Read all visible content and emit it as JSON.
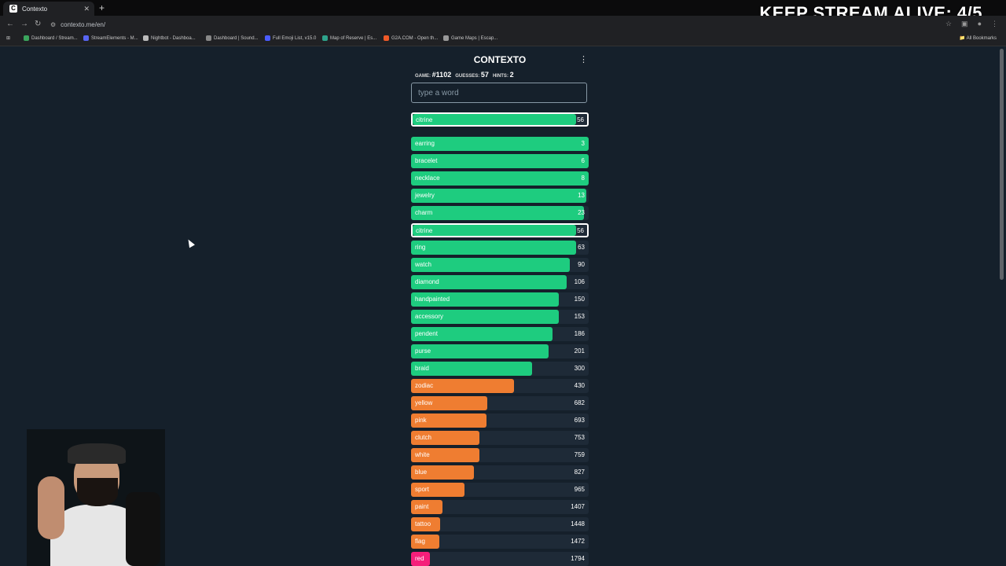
{
  "browser": {
    "tab_title": "Contexto",
    "tab_favicon_letter": "C",
    "url": "contexto.me/en/",
    "bookmarks": [
      {
        "label": "Dashboard / Stream...",
        "color": "#3ba55d"
      },
      {
        "label": "StreamElements - M...",
        "color": "#5865f2"
      },
      {
        "label": "Nightbot - Dashboa...",
        "color": "#bbbbbb"
      },
      {
        "label": "Dashboard | Sound...",
        "color": "#888888"
      },
      {
        "label": "Full Emoji List, v15.0",
        "color": "#4a5cff"
      },
      {
        "label": "Map of Reserve | Es...",
        "color": "#2ea38b"
      },
      {
        "label": "G2A.COM - Open th...",
        "color": "#f05a28"
      },
      {
        "label": "Game Maps | Escap...",
        "color": "#999999"
      }
    ],
    "all_bookmarks_label": "All Bookmarks"
  },
  "overlay": {
    "text": "KEEP STREAM ALIVE: 4/5"
  },
  "game": {
    "title": "CONTEXTO",
    "game_label": "GAME:",
    "game_number": "#1102",
    "guesses_label": "GUESSES:",
    "guesses": "57",
    "hints_label": "HINTS:",
    "hints": "2",
    "search_placeholder": "type a word",
    "last_guess": {
      "word": "citrine",
      "distance": "56",
      "fill": 0.935,
      "color": "#1ecc7f"
    },
    "guesses_list": [
      {
        "word": "earring",
        "distance": "3",
        "fill": 1.0,
        "color": "#1ecc7f"
      },
      {
        "word": "bracelet",
        "distance": "6",
        "fill": 1.0,
        "color": "#1ecc7f"
      },
      {
        "word": "necklace",
        "distance": "8",
        "fill": 1.0,
        "color": "#1ecc7f"
      },
      {
        "word": "jewelry",
        "distance": "13",
        "fill": 0.985,
        "color": "#1ecc7f"
      },
      {
        "word": "charm",
        "distance": "23",
        "fill": 0.975,
        "color": "#1ecc7f"
      },
      {
        "word": "citrine",
        "distance": "56",
        "fill": 0.935,
        "color": "#1ecc7f",
        "highlight": true
      },
      {
        "word": "ring",
        "distance": "63",
        "fill": 0.93,
        "color": "#1ecc7f"
      },
      {
        "word": "watch",
        "distance": "90",
        "fill": 0.895,
        "color": "#1ecc7f"
      },
      {
        "word": "diamond",
        "distance": "106",
        "fill": 0.875,
        "color": "#1ecc7f"
      },
      {
        "word": "handpainted",
        "distance": "150",
        "fill": 0.83,
        "color": "#1ecc7f"
      },
      {
        "word": "accessory",
        "distance": "153",
        "fill": 0.83,
        "color": "#1ecc7f"
      },
      {
        "word": "pendent",
        "distance": "186",
        "fill": 0.795,
        "color": "#1ecc7f"
      },
      {
        "word": "purse",
        "distance": "201",
        "fill": 0.775,
        "color": "#1ecc7f"
      },
      {
        "word": "braid",
        "distance": "300",
        "fill": 0.68,
        "color": "#1ecc7f"
      },
      {
        "word": "zodiac",
        "distance": "430",
        "fill": 0.58,
        "color": "#ef7d31"
      },
      {
        "word": "yellow",
        "distance": "682",
        "fill": 0.43,
        "color": "#ef7d31"
      },
      {
        "word": "pink",
        "distance": "693",
        "fill": 0.425,
        "color": "#ef7d31"
      },
      {
        "word": "clutch",
        "distance": "753",
        "fill": 0.385,
        "color": "#ef7d31"
      },
      {
        "word": "white",
        "distance": "759",
        "fill": 0.385,
        "color": "#ef7d31"
      },
      {
        "word": "blue",
        "distance": "827",
        "fill": 0.355,
        "color": "#ef7d31"
      },
      {
        "word": "sport",
        "distance": "965",
        "fill": 0.3,
        "color": "#ef7d31"
      },
      {
        "word": "paint",
        "distance": "1407",
        "fill": 0.175,
        "color": "#ef7d31"
      },
      {
        "word": "tattoo",
        "distance": "1448",
        "fill": 0.165,
        "color": "#ef7d31"
      },
      {
        "word": "flag",
        "distance": "1472",
        "fill": 0.16,
        "color": "#ef7d31"
      },
      {
        "word": "red",
        "distance": "1794",
        "fill": 0.105,
        "color": "#f51f7a"
      }
    ]
  }
}
